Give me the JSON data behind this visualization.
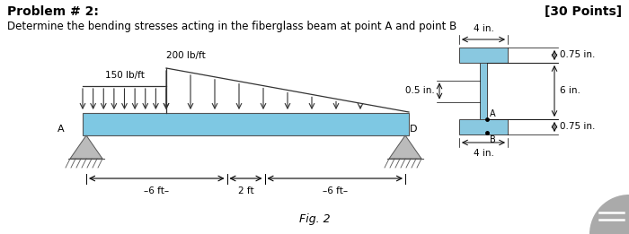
{
  "title": "Problem # 2:",
  "points": "[30 Points]",
  "subtitle": "Determine the bending stresses acting in the fiberglass beam at point A and point B",
  "load1_label": "150 lb/ft",
  "load2_label": "200 lb/ft",
  "fig_label": "Fig. 2",
  "dim1": "4 in.",
  "dim2": "0.75 in.",
  "dim3": "6 in.",
  "dim4": "0.5 in.",
  "dim5": "4 in.",
  "dim6": "0.75 in.",
  "beam_color": "#7ec8e3",
  "support_color": "#bbbbbb",
  "section_fill": "#89c8e0",
  "wedge_color": "#aaaaaa"
}
